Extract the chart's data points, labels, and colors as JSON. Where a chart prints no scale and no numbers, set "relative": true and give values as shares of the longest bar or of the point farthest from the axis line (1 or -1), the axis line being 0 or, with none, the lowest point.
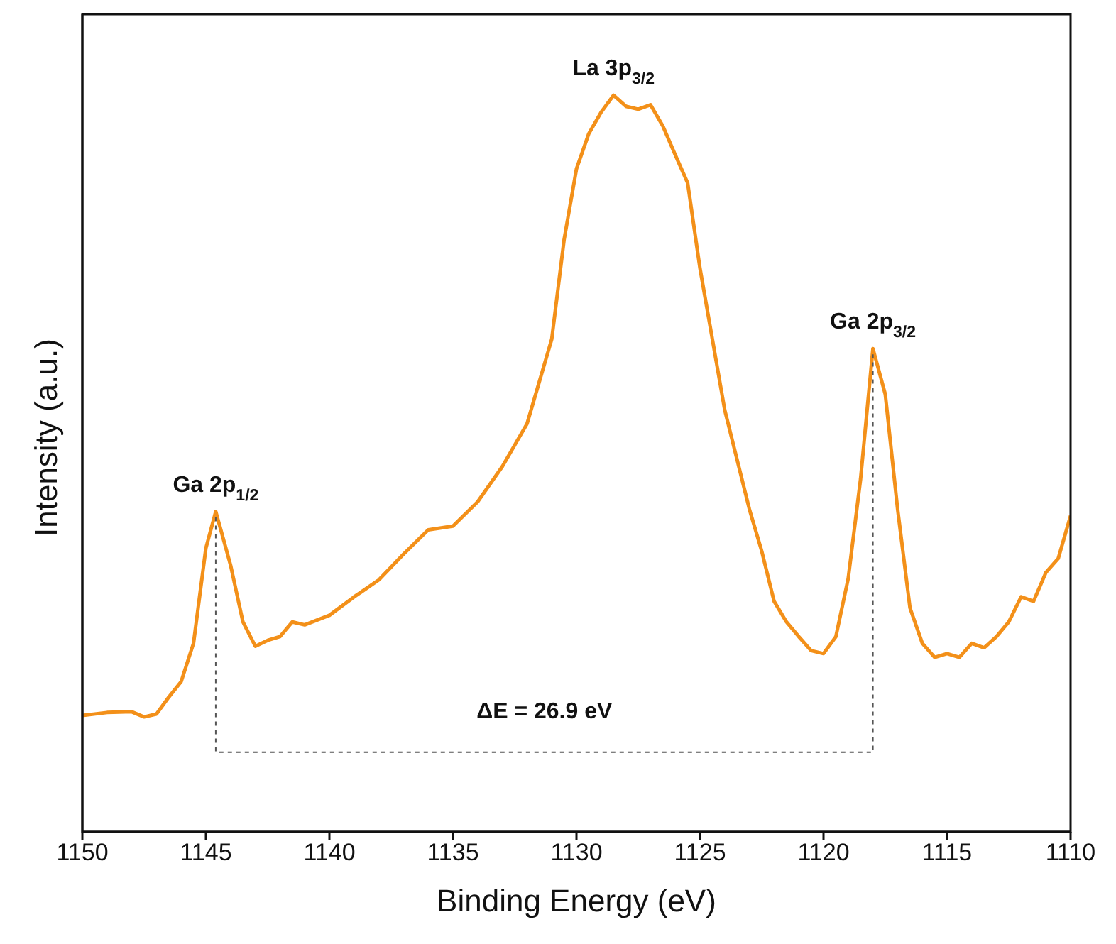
{
  "chart_data": {
    "type": "line",
    "xlabel": "Binding Energy (eV)",
    "ylabel": "Intensity (a.u.)",
    "relative": true,
    "xlim": [
      1150,
      1110
    ],
    "xticks": [
      1150,
      1145,
      1140,
      1135,
      1130,
      1125,
      1120,
      1115,
      1110
    ],
    "tick_labels": "x",
    "grid": false,
    "legend": false,
    "marker": "none",
    "line_style": "solid",
    "x": [
      1150,
      1149,
      1148,
      1147.5,
      1147,
      1146.5,
      1146,
      1145.5,
      1145,
      1144.6,
      1144,
      1143.5,
      1143,
      1142.5,
      1142,
      1141.5,
      1141,
      1140,
      1139,
      1138,
      1137,
      1136,
      1135,
      1134,
      1133,
      1132,
      1131,
      1130.5,
      1130,
      1129.5,
      1129,
      1128.5,
      1128,
      1127.5,
      1127,
      1126.5,
      1126,
      1125.5,
      1125,
      1124,
      1123,
      1122.5,
      1122,
      1121.5,
      1121,
      1120.5,
      1120,
      1119.5,
      1119,
      1118.5,
      1118,
      1117.5,
      1117,
      1116.5,
      1116,
      1115.5,
      1115,
      1114.5,
      1114,
      1113.5,
      1113,
      1112.5,
      1112,
      1111.5,
      1111,
      1110.5,
      1110
    ],
    "series": [
      {
        "color": "#f39019",
        "values": [
          0.158,
          0.162,
          0.163,
          0.156,
          0.16,
          0.183,
          0.204,
          0.256,
          0.385,
          0.435,
          0.362,
          0.285,
          0.252,
          0.26,
          0.265,
          0.285,
          0.281,
          0.294,
          0.319,
          0.342,
          0.377,
          0.41,
          0.415,
          0.448,
          0.496,
          0.554,
          0.669,
          0.804,
          0.9,
          0.948,
          0.977,
          1.0,
          0.985,
          0.981,
          0.987,
          0.958,
          0.919,
          0.881,
          0.765,
          0.573,
          0.438,
          0.381,
          0.313,
          0.285,
          0.265,
          0.246,
          0.242,
          0.265,
          0.344,
          0.479,
          0.656,
          0.594,
          0.438,
          0.304,
          0.256,
          0.237,
          0.242,
          0.237,
          0.256,
          0.25,
          0.265,
          0.285,
          0.319,
          0.313,
          0.352,
          0.371,
          0.429
        ]
      }
    ],
    "annotations": [
      "Ga 2p$_{1/2}$",
      "La 3p$_{3/2}$",
      "Ga 2p$_{3/2}$",
      "ΔE = 26.9 eV"
    ]
  }
}
